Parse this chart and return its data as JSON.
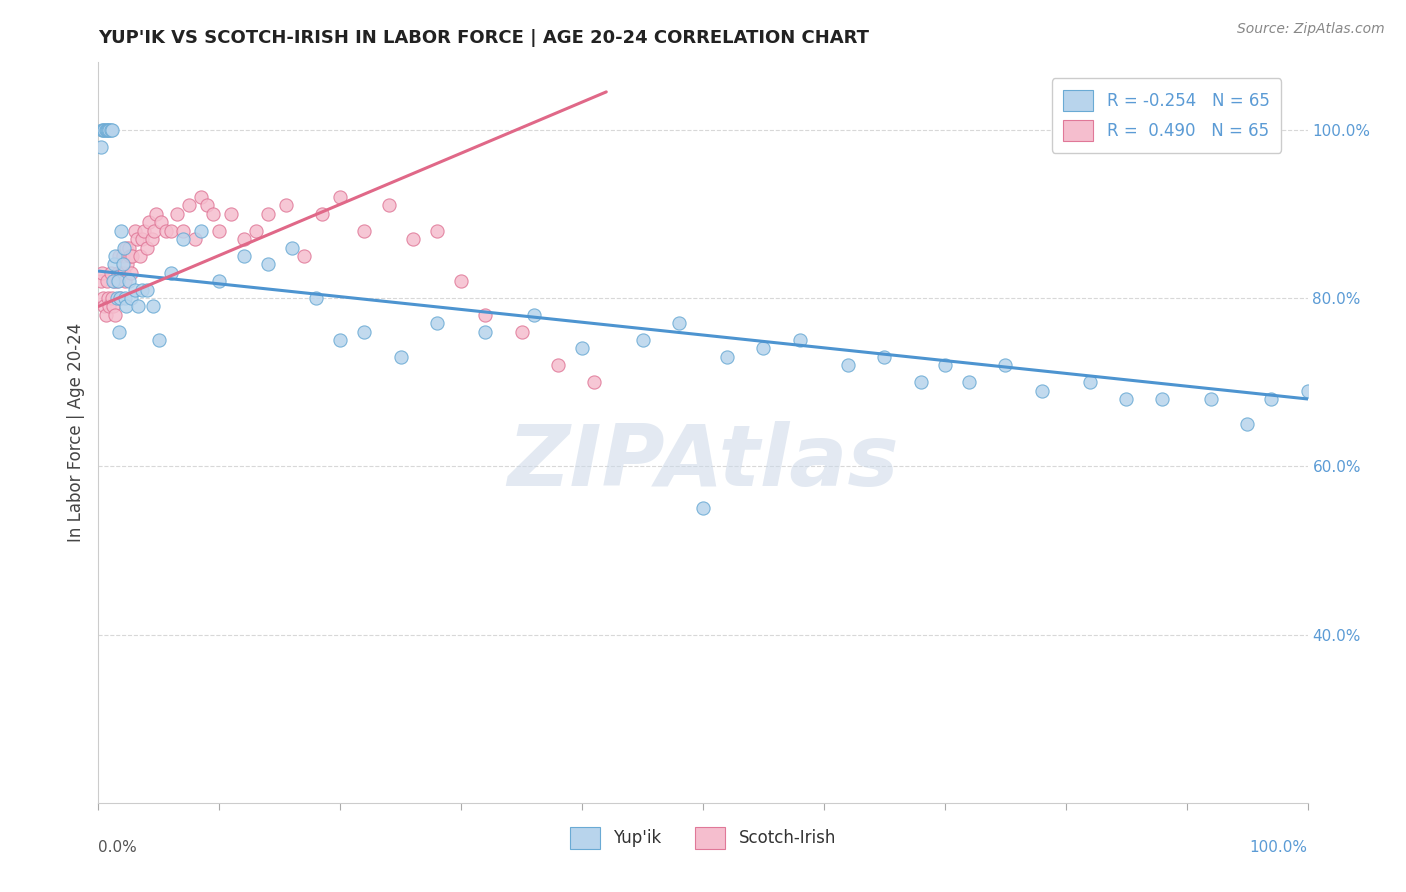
{
  "title": "YUP'IK VS SCOTCH-IRISH IN LABOR FORCE | AGE 20-24 CORRELATION CHART",
  "source_text": "Source: ZipAtlas.com",
  "ylabel": "In Labor Force | Age 20-24",
  "watermark": "ZIPAtlas",
  "yupik_label": "Yup'ik",
  "scotch_label": "Scotch-Irish",
  "yupik_R": "-0.254",
  "scotch_R": "0.490",
  "N": 65,
  "yupik_color": "#b8d4ec",
  "yupik_edge": "#6aaad4",
  "scotch_color": "#f5bece",
  "scotch_edge": "#e07898",
  "yupik_line_color": "#4d94d0",
  "scotch_line_color": "#e06888",
  "bg_color": "#ffffff",
  "grid_color": "#d8d8d8",
  "title_color": "#222222",
  "right_tick_color": "#5b9bd5",
  "xlim": [
    0.0,
    1.0
  ],
  "ylim": [
    0.2,
    1.08
  ],
  "right_yticks": [
    0.4,
    0.6,
    0.8,
    1.0
  ],
  "right_yticklabels": [
    "40.0%",
    "60.0%",
    "80.0%",
    "100.0%"
  ],
  "source_fontsize": 10,
  "title_fontsize": 13,
  "tick_fontsize": 11,
  "legend_fontsize": 12,
  "yupik_x": [
    0.002,
    0.003,
    0.004,
    0.005,
    0.006,
    0.007,
    0.008,
    0.009,
    0.01,
    0.011,
    0.012,
    0.013,
    0.014,
    0.015,
    0.016,
    0.017,
    0.018,
    0.019,
    0.02,
    0.021,
    0.022,
    0.023,
    0.025,
    0.027,
    0.03,
    0.033,
    0.036,
    0.04,
    0.045,
    0.05,
    0.06,
    0.07,
    0.085,
    0.1,
    0.12,
    0.14,
    0.16,
    0.18,
    0.2,
    0.22,
    0.25,
    0.28,
    0.32,
    0.36,
    0.4,
    0.45,
    0.48,
    0.5,
    0.52,
    0.55,
    0.58,
    0.62,
    0.65,
    0.68,
    0.7,
    0.72,
    0.75,
    0.78,
    0.82,
    0.85,
    0.88,
    0.92,
    0.95,
    0.97,
    1.0
  ],
  "yupik_y": [
    0.98,
    1.0,
    1.0,
    1.0,
    1.0,
    1.0,
    1.0,
    1.0,
    1.0,
    1.0,
    0.82,
    0.84,
    0.85,
    0.8,
    0.82,
    0.76,
    0.8,
    0.88,
    0.84,
    0.86,
    0.8,
    0.79,
    0.82,
    0.8,
    0.81,
    0.79,
    0.81,
    0.81,
    0.79,
    0.75,
    0.83,
    0.87,
    0.88,
    0.82,
    0.85,
    0.84,
    0.86,
    0.8,
    0.75,
    0.76,
    0.73,
    0.77,
    0.76,
    0.78,
    0.74,
    0.75,
    0.77,
    0.55,
    0.73,
    0.74,
    0.75,
    0.72,
    0.73,
    0.7,
    0.72,
    0.7,
    0.72,
    0.69,
    0.7,
    0.68,
    0.68,
    0.68,
    0.65,
    0.68,
    0.69
  ],
  "scotch_x": [
    0.002,
    0.003,
    0.004,
    0.005,
    0.006,
    0.007,
    0.008,
    0.009,
    0.01,
    0.011,
    0.012,
    0.013,
    0.014,
    0.015,
    0.016,
    0.017,
    0.018,
    0.019,
    0.02,
    0.021,
    0.022,
    0.023,
    0.024,
    0.025,
    0.026,
    0.027,
    0.028,
    0.03,
    0.032,
    0.034,
    0.036,
    0.038,
    0.04,
    0.042,
    0.044,
    0.046,
    0.048,
    0.052,
    0.056,
    0.06,
    0.065,
    0.07,
    0.075,
    0.08,
    0.085,
    0.09,
    0.095,
    0.1,
    0.11,
    0.12,
    0.13,
    0.14,
    0.155,
    0.17,
    0.185,
    0.2,
    0.22,
    0.24,
    0.26,
    0.28,
    0.3,
    0.32,
    0.35,
    0.38,
    0.41
  ],
  "scotch_y": [
    0.82,
    0.83,
    0.8,
    0.79,
    0.78,
    0.82,
    0.8,
    0.79,
    0.83,
    0.8,
    0.79,
    0.82,
    0.78,
    0.82,
    0.83,
    0.85,
    0.8,
    0.83,
    0.85,
    0.83,
    0.82,
    0.86,
    0.84,
    0.86,
    0.85,
    0.83,
    0.85,
    0.88,
    0.87,
    0.85,
    0.87,
    0.88,
    0.86,
    0.89,
    0.87,
    0.88,
    0.9,
    0.89,
    0.88,
    0.88,
    0.9,
    0.88,
    0.91,
    0.87,
    0.92,
    0.91,
    0.9,
    0.88,
    0.9,
    0.87,
    0.88,
    0.9,
    0.91,
    0.85,
    0.9,
    0.92,
    0.88,
    0.91,
    0.87,
    0.88,
    0.82,
    0.78,
    0.76,
    0.72,
    0.7
  ],
  "yupik_trend_x": [
    0.0,
    1.0
  ],
  "yupik_trend_y": [
    0.832,
    0.68
  ],
  "scotch_trend_x": [
    0.0,
    0.42
  ],
  "scotch_trend_y": [
    0.79,
    1.045
  ]
}
